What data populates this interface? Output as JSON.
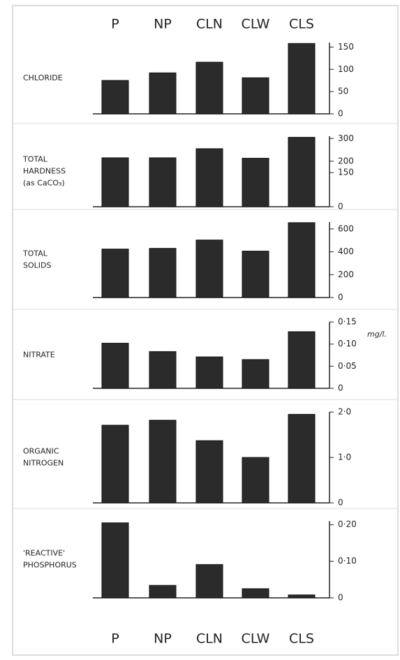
{
  "chart_data": [
    {
      "type": "bar",
      "label": [
        "CHLORIDE"
      ],
      "categories": [
        "P",
        "NP",
        "CLN",
        "CLW",
        "CLS"
      ],
      "values": [
        75,
        92,
        116,
        81,
        158
      ],
      "color": "#2b2b2b",
      "ylim": [
        0,
        160
      ],
      "yticks": [
        0,
        50,
        100,
        150
      ]
    },
    {
      "type": "bar",
      "label": [
        "TOTAL",
        "HARDNESS",
        "(as CaCO₃)"
      ],
      "categories": [
        "P",
        "NP",
        "CLN",
        "CLW",
        "CLS"
      ],
      "values": [
        215,
        215,
        255,
        213,
        305
      ],
      "color": "#2b2b2b",
      "ylim": [
        0,
        310
      ],
      "yticks": [
        0,
        150,
        200,
        300
      ]
    },
    {
      "type": "bar",
      "label": [
        "TOTAL",
        "SOLIDS"
      ],
      "categories": [
        "P",
        "NP",
        "CLN",
        "CLW",
        "CLS"
      ],
      "values": [
        424,
        430,
        503,
        406,
        655
      ],
      "color": "#2b2b2b",
      "ylim": [
        0,
        660
      ],
      "yticks": [
        0,
        200,
        400,
        600
      ]
    },
    {
      "type": "bar",
      "label": [
        "NITRATE"
      ],
      "unit": "mg/l.",
      "categories": [
        "P",
        "NP",
        "CLN",
        "CLW",
        "CLS"
      ],
      "values": [
        0.102,
        0.083,
        0.071,
        0.065,
        0.128
      ],
      "color": "#2b2b2b",
      "ylim": [
        0,
        0.15
      ],
      "yticks": [
        0,
        {
          "value": 0.05,
          "label": "0·05"
        },
        {
          "value": 0.1,
          "label": "0·10"
        },
        {
          "value": 0.15,
          "label": "0·15"
        }
      ]
    },
    {
      "type": "bar",
      "label": [
        "ORGANIC",
        "NITROGEN"
      ],
      "categories": [
        "P",
        "NP",
        "CLN",
        "CLW",
        "CLS"
      ],
      "values": [
        1.71,
        1.82,
        1.37,
        1.0,
        1.95
      ],
      "color": "#2b2b2b",
      "ylim": [
        0,
        2
      ],
      "yticks": [
        0,
        {
          "value": 1,
          "label": "1·0"
        },
        {
          "value": 2,
          "label": "2·0"
        }
      ]
    },
    {
      "type": "bar",
      "label": [
        "'REACTIVE'",
        "PHOSPHORUS"
      ],
      "categories": [
        "P",
        "NP",
        "CLN",
        "CLW",
        "CLS"
      ],
      "values": [
        0.205,
        0.034,
        0.091,
        0.025,
        0.008
      ],
      "color": "#2b2b2b",
      "ylim": [
        0,
        0.21
      ],
      "yticks": [
        0,
        {
          "value": 0.1,
          "label": "0·10"
        },
        {
          "value": 0.2,
          "label": "0·20"
        }
      ]
    }
  ]
}
